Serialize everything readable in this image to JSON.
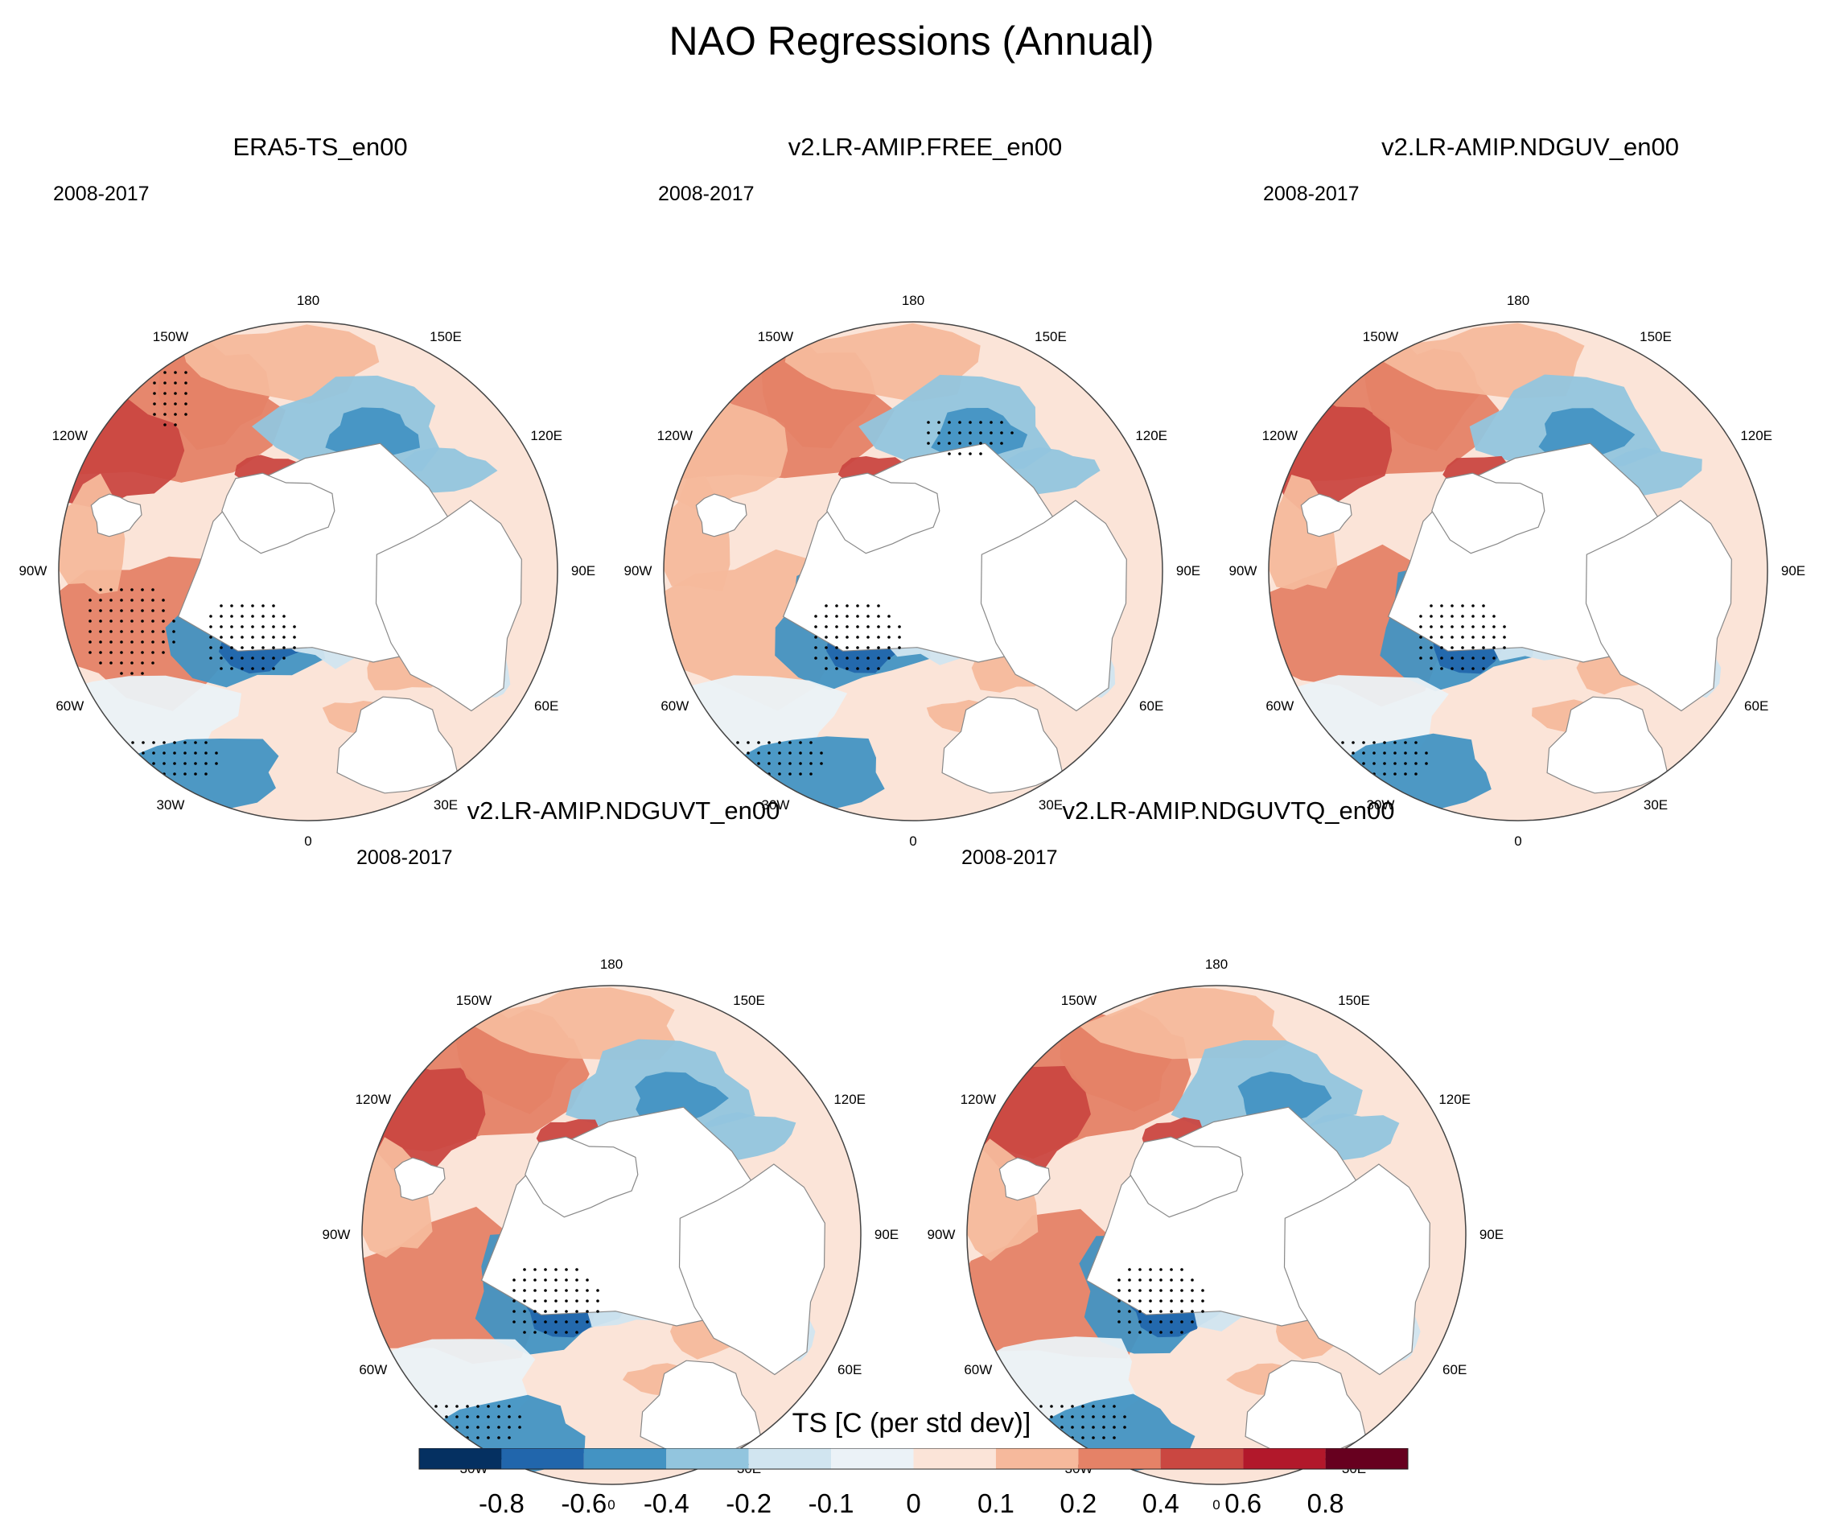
{
  "title": "NAO Regressions (Annual)",
  "chart_data": {
    "type": "polar-stereographic contour maps",
    "variable": "TS",
    "period": "2008-2017",
    "longitude_labels": [
      "180",
      "150E",
      "120E",
      "90E",
      "60E",
      "30E",
      "0",
      "30W",
      "60W",
      "90W",
      "120W",
      "150W"
    ],
    "panels": [
      {
        "title": "ERA5-TS_en00",
        "period": "2008-2017"
      },
      {
        "title": "v2.LR-AMIP.FREE_en00",
        "period": "2008-2017"
      },
      {
        "title": "v2.LR-AMIP.NDGUV_en00",
        "period": "2008-2017"
      },
      {
        "title": "v2.LR-AMIP.NDGUVT_en00",
        "period": "2008-2017"
      },
      {
        "title": "v2.LR-AMIP.NDGUVTQ_en00",
        "period": "2008-2017"
      }
    ],
    "colorbar": {
      "title": "TS [C (per std dev)]",
      "levels": [
        "-0.8",
        "-0.6",
        "-0.4",
        "-0.2",
        "-0.1",
        "0",
        "0.1",
        "0.2",
        "0.4",
        "0.6",
        "0.8"
      ],
      "colors": [
        "#053061",
        "#2166ac",
        "#4393c3",
        "#92c5de",
        "#d1e5f0",
        "#ebf2f7",
        "#fbe4d8",
        "#f6b99c",
        "#e58267",
        "#ca4741",
        "#b2182b",
        "#67001f"
      ]
    }
  }
}
